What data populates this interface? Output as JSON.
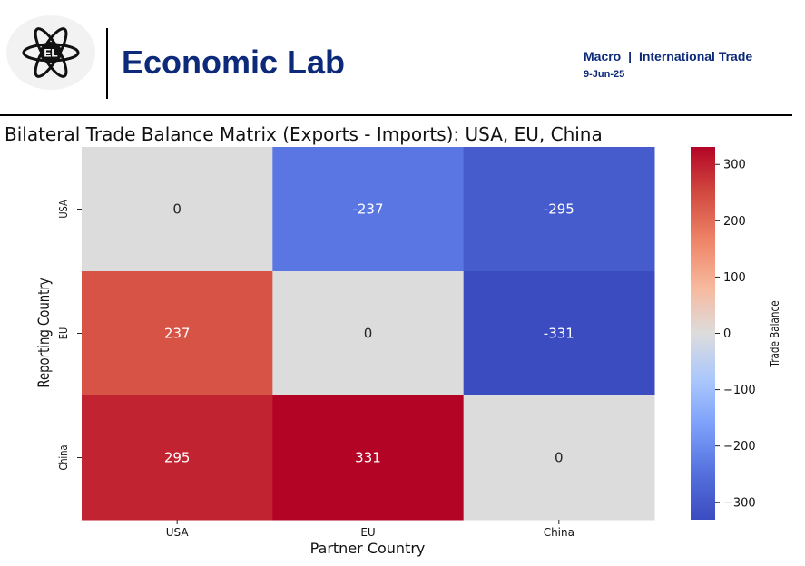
{
  "header": {
    "logo_text": "EL",
    "brand": "Economic Lab",
    "category": "Macro",
    "separator": "|",
    "topic": "International Trade",
    "date": "9-Jun-25"
  },
  "chart_data": {
    "type": "heatmap",
    "title": "Bilateral Trade Balance Matrix (Exports - Imports): USA, EU, China",
    "xlabel": "Partner Country",
    "ylabel": "Reporting Country",
    "x_categories": [
      "USA",
      "EU",
      "China"
    ],
    "y_categories": [
      "USA",
      "EU",
      "China"
    ],
    "values": [
      [
        0,
        -237,
        -295
      ],
      [
        237,
        0,
        -331
      ],
      [
        295,
        331,
        0
      ]
    ],
    "annotations": [
      "0",
      "-237",
      "-295",
      "237",
      "0",
      "-331",
      "295",
      "331",
      "0"
    ],
    "colormap": "coolwarm",
    "vmin": -331,
    "vmax": 331,
    "colorbar": {
      "label": "Trade Balance",
      "ticks": [
        300,
        200,
        100,
        0,
        -100,
        -200,
        -300
      ],
      "tick_labels": [
        "300",
        "200",
        "100",
        "0",
        "−100",
        "−200",
        "−300"
      ]
    }
  }
}
